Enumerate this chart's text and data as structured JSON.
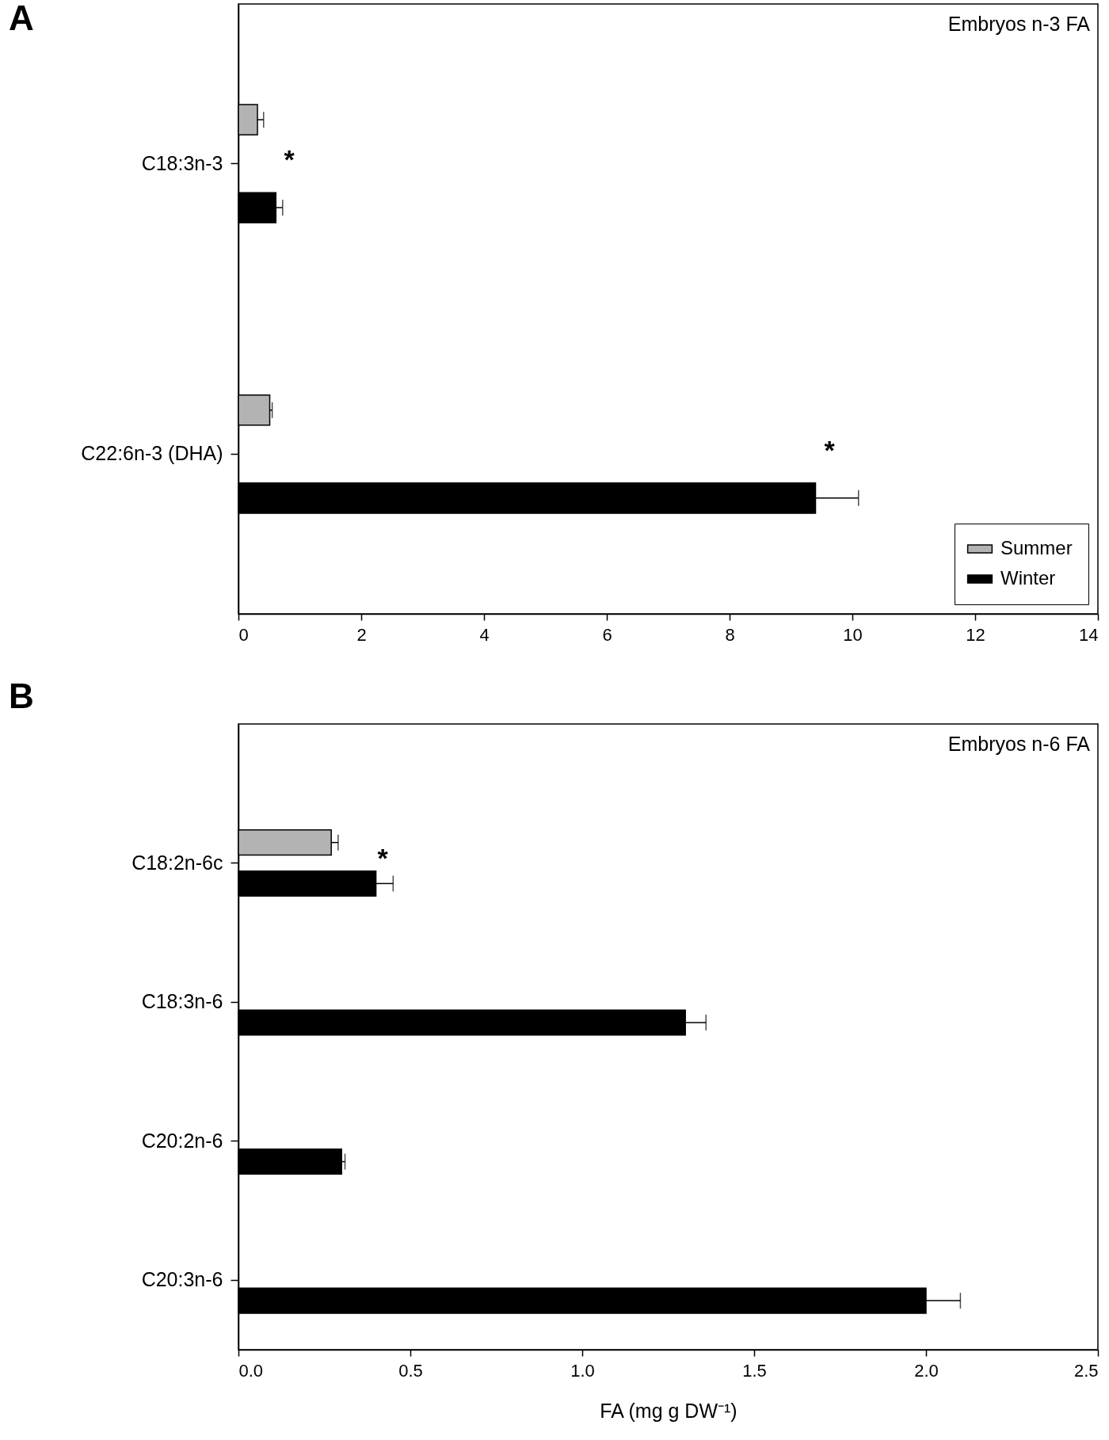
{
  "chart_data": [
    {
      "type": "bar",
      "orientation": "horizontal",
      "title": "Embryos n-3 FA",
      "annotations": [
        "A",
        "*",
        "*"
      ],
      "categories": [
        "C18:3n-3",
        "C22:6n-3 (DHA)"
      ],
      "series": [
        {
          "name": "Summer",
          "color": "#b3b3b3",
          "values": [
            0.31,
            0.51
          ],
          "errors": [
            [
              0.31,
              0.41
            ],
            [
              0.51,
              0.55
            ]
          ]
        },
        {
          "name": "Winter",
          "color": "#000000",
          "values": [
            0.61,
            9.4
          ],
          "errors": [
            [
              0.61,
              0.72
            ],
            [
              9.4,
              10.1
            ]
          ]
        }
      ],
      "xlim": [
        0,
        14
      ],
      "xticks": [
        0,
        2,
        4,
        6,
        8,
        10,
        12,
        14
      ],
      "legend": "bottom right"
    },
    {
      "type": "bar",
      "orientation": "horizontal",
      "title": "Embryos n-6 FA",
      "xlabel": "FA (mg g DW⁻¹)",
      "annotations": [
        "B",
        "*"
      ],
      "categories": [
        "C18:2n-6c",
        "C18:3n-6",
        "C20:2n-6",
        "C20:3n-6"
      ],
      "series": [
        {
          "color": "#b3b3b3",
          "values": [
            0.27,
            null,
            null,
            null
          ],
          "errors": [
            [
              0.27,
              0.29
            ],
            null,
            null,
            null
          ]
        },
        {
          "color": "#000000",
          "values": [
            0.4,
            1.3,
            0.3,
            2.0
          ],
          "errors": [
            [
              0.4,
              0.45
            ],
            [
              1.3,
              1.36
            ],
            [
              0.3,
              0.31
            ],
            [
              2.0,
              2.1
            ]
          ]
        }
      ],
      "xlim": [
        0,
        2.5
      ],
      "xticks": [
        {
          "value": 0,
          "label": "0.0"
        },
        {
          "value": 0.5,
          "label": "0.5"
        },
        {
          "value": 1,
          "label": "1.0"
        },
        {
          "value": 1.5,
          "label": "1.5"
        },
        {
          "value": 2,
          "label": "2.0"
        },
        {
          "value": 2.5,
          "label": "2.5"
        }
      ]
    }
  ]
}
